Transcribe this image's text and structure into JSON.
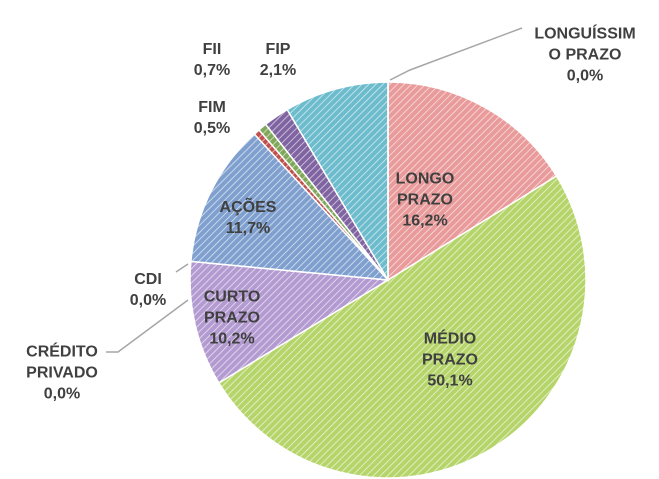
{
  "chart_data": {
    "type": "pie",
    "categories": [
      "LONGO PRAZO",
      "MÉDIO PRAZO",
      "CURTO PRAZO",
      "CDI",
      "CRÉDITO PRIVADO",
      "AÇÕES",
      "FIM",
      "FII",
      "FIP",
      null,
      "LONGUÍSSIMO PRAZO"
    ],
    "values": [
      16.2,
      50.1,
      10.2,
      0.0,
      0.0,
      11.7,
      0.5,
      0.7,
      2.1,
      8.5,
      0.0
    ],
    "value_labels": [
      "16,2%",
      "50,1%",
      "10,2%",
      "0,0%",
      "0,0%",
      "11,7%",
      "0,5%",
      "0,7%",
      "2,1%",
      null,
      "0,0%"
    ],
    "colors": [
      "#e99a9a",
      "#b5d56a",
      "#b39bd1",
      "#8fb8c9",
      "#999999",
      "#7fa0cf",
      "#c0504d",
      "#7fa85a",
      "#8064a2",
      "#6dbccd",
      "#aaaaaa"
    ]
  }
}
